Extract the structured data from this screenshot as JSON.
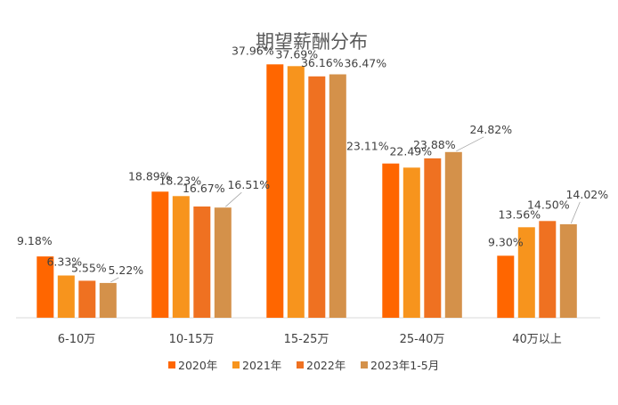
{
  "chart_data": {
    "type": "bar",
    "title": "期望薪酬分布",
    "categories": [
      "6-10万",
      "10-15万",
      "15-25万",
      "25-40万",
      "40万以上"
    ],
    "series": [
      {
        "name": "2020年",
        "color": "#FF6600",
        "values": [
          9.18,
          18.89,
          37.96,
          23.11,
          9.3
        ],
        "labels": [
          "9.18%",
          "18.89%",
          "37.96%",
          "23.11%",
          "9.30%"
        ]
      },
      {
        "name": "2021年",
        "color": "#F7941D",
        "values": [
          6.33,
          18.23,
          37.69,
          22.49,
          13.56
        ],
        "labels": [
          "6.33%",
          "18.23%",
          "37.69%",
          "22.49%",
          "13.56%"
        ]
      },
      {
        "name": "2022年",
        "color": "#EF7121",
        "values": [
          5.55,
          16.67,
          36.16,
          23.88,
          14.5
        ],
        "labels": [
          "5.55%",
          "16.67%",
          "36.16%",
          "23.88%",
          "14.50%"
        ]
      },
      {
        "name": "2023年1-5月",
        "color": "#D4914A",
        "values": [
          5.22,
          16.51,
          36.47,
          24.82,
          14.02
        ],
        "labels": [
          "5.22%",
          "16.51%",
          "36.47%",
          "24.82%",
          "14.02%"
        ]
      }
    ],
    "xlabel": "",
    "ylabel": "",
    "ylim": [
      0,
      40
    ],
    "grid": false,
    "legend_position": "bottom"
  }
}
